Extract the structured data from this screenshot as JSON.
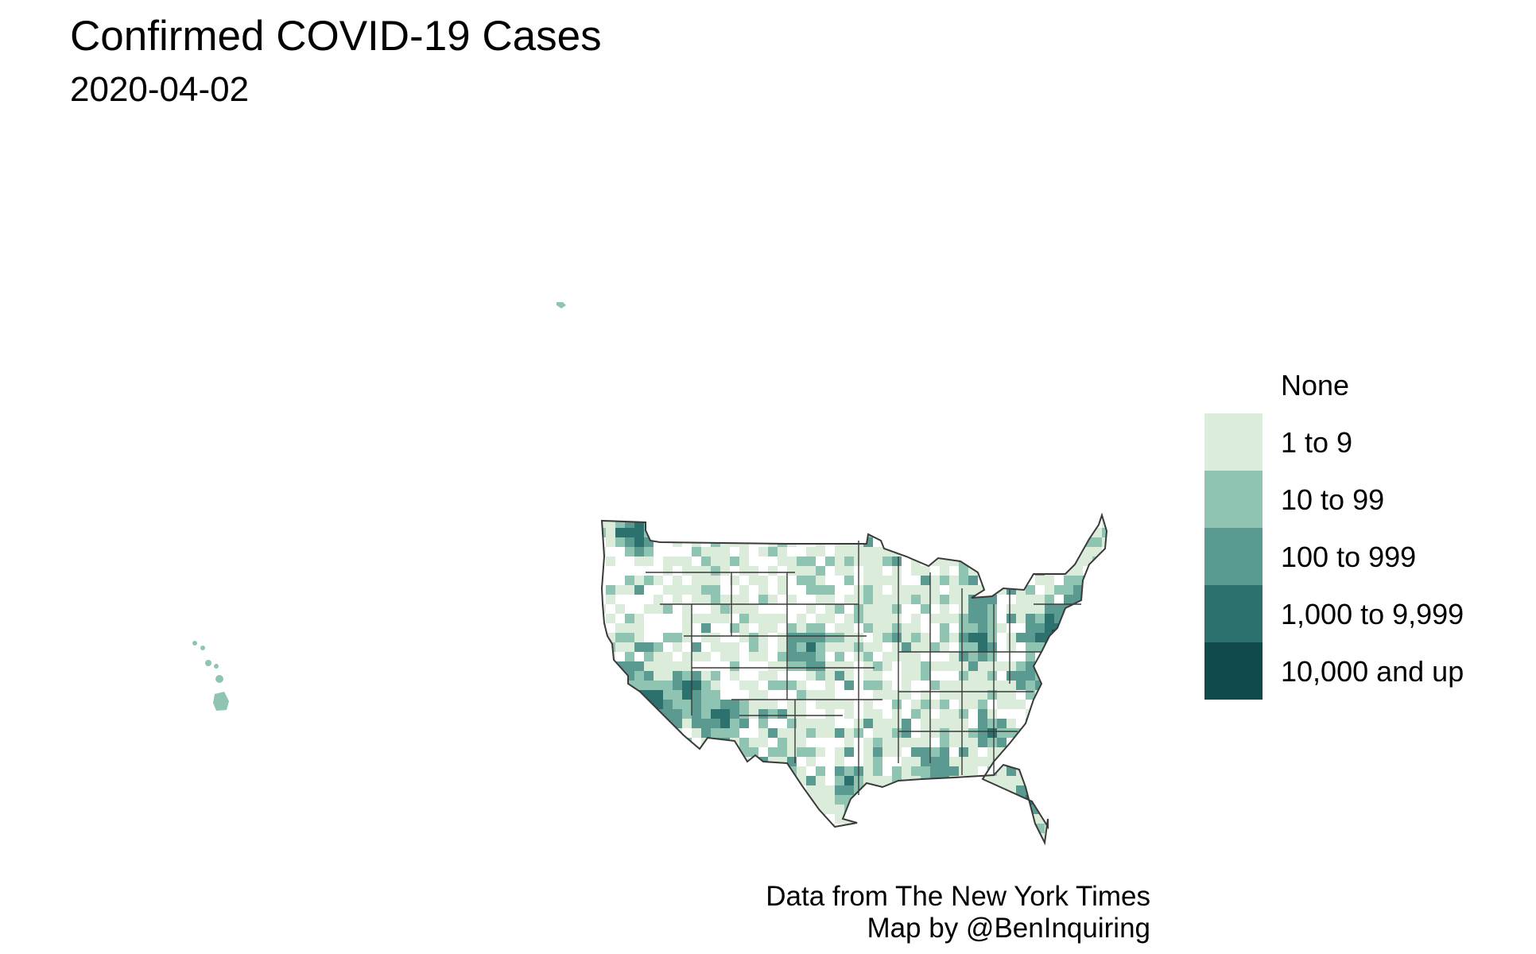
{
  "title": "Confirmed COVID-19 Cases",
  "subtitle": "2020-04-02",
  "legend": {
    "items": [
      {
        "label": "None",
        "color": "#ffffff"
      },
      {
        "label": "1 to 9",
        "color": "#dcecda"
      },
      {
        "label": "10 to 99",
        "color": "#8fc4b3"
      },
      {
        "label": "100 to 999",
        "color": "#5a9a91"
      },
      {
        "label": "1,000 to 9,999",
        "color": "#2c716d"
      },
      {
        "label": "10,000 and up",
        "color": "#104a4d"
      }
    ]
  },
  "caption": {
    "line1": "Data from The New York Times",
    "line2": "Map by @BenInquiring"
  },
  "colors": {
    "border": "#3a3a3a",
    "background": "#ffffff"
  }
}
